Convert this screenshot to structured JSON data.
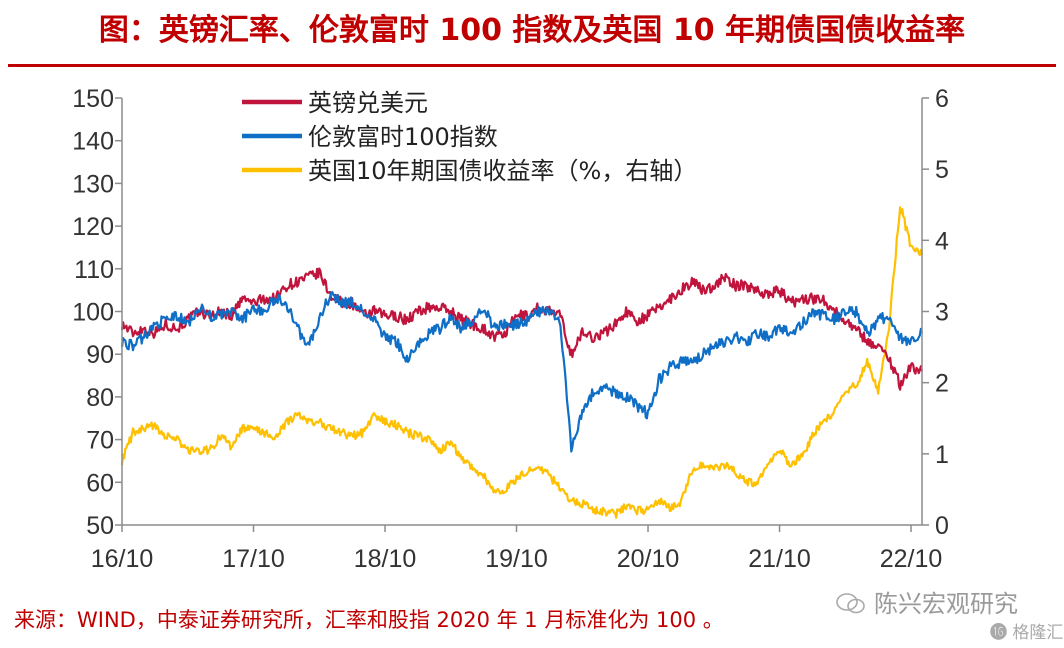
{
  "title": "图：英镑汇率、伦敦富时 100 指数及英国 10 年期债国债收益率",
  "source": "来源：WIND，中泰证券研究所，汇率和股指 2020 年 1 月标准化为 100 。",
  "watermark": {
    "text": "陈兴宏观研究",
    "logo_text": "格隆汇"
  },
  "chart_data": {
    "type": "line",
    "x_ticks": [
      "16/10",
      "17/10",
      "18/10",
      "19/10",
      "20/10",
      "21/10",
      "22/10"
    ],
    "xlim": [
      "2016-10",
      "2022-11"
    ],
    "ylim_left": [
      50,
      150
    ],
    "y_ticks_left": [
      "150",
      "140",
      "130",
      "120",
      "110",
      "100",
      "90",
      "80",
      "70",
      "60",
      "50"
    ],
    "ylim_right": [
      0,
      6
    ],
    "y_ticks_right": [
      "6",
      "5",
      "4",
      "3",
      "2",
      "1",
      "0"
    ],
    "grid": false,
    "legend_placement": "top-center",
    "series": [
      {
        "name": "英镑兑美元",
        "axis": "left",
        "color": "#c0143c",
        "points": [
          [
            "2016-10",
            97
          ],
          [
            "2016-11",
            95
          ],
          [
            "2016-12",
            96
          ],
          [
            "2017-01",
            95
          ],
          [
            "2017-02",
            97
          ],
          [
            "2017-03",
            96
          ],
          [
            "2017-04",
            98
          ],
          [
            "2017-05",
            100
          ],
          [
            "2017-06",
            99
          ],
          [
            "2017-07",
            100
          ],
          [
            "2017-08",
            99
          ],
          [
            "2017-09",
            103
          ],
          [
            "2017-10",
            102
          ],
          [
            "2017-11",
            103
          ],
          [
            "2017-12",
            103
          ],
          [
            "2018-01",
            106
          ],
          [
            "2018-02",
            107
          ],
          [
            "2018-03",
            108
          ],
          [
            "2018-04",
            109
          ],
          [
            "2018-05",
            104
          ],
          [
            "2018-06",
            102
          ],
          [
            "2018-07",
            102
          ],
          [
            "2018-08",
            99
          ],
          [
            "2018-09",
            100
          ],
          [
            "2018-10",
            99
          ],
          [
            "2018-11",
            99
          ],
          [
            "2018-12",
            98
          ],
          [
            "2019-01",
            100
          ],
          [
            "2019-02",
            101
          ],
          [
            "2019-03",
            101
          ],
          [
            "2019-04",
            100
          ],
          [
            "2019-05",
            98
          ],
          [
            "2019-06",
            97
          ],
          [
            "2019-07",
            96
          ],
          [
            "2019-08",
            94
          ],
          [
            "2019-09",
            95
          ],
          [
            "2019-10",
            99
          ],
          [
            "2019-11",
            99
          ],
          [
            "2019-12",
            101
          ],
          [
            "2020-01",
            100
          ],
          [
            "2020-02",
            99
          ],
          [
            "2020-03",
            90
          ],
          [
            "2020-04",
            95
          ],
          [
            "2020-05",
            94
          ],
          [
            "2020-06",
            95
          ],
          [
            "2020-07",
            97
          ],
          [
            "2020-08",
            100
          ],
          [
            "2020-09",
            98
          ],
          [
            "2020-10",
            99
          ],
          [
            "2020-11",
            101
          ],
          [
            "2020-12",
            103
          ],
          [
            "2021-01",
            105
          ],
          [
            "2021-02",
            107
          ],
          [
            "2021-03",
            105
          ],
          [
            "2021-04",
            106
          ],
          [
            "2021-05",
            108
          ],
          [
            "2021-06",
            106
          ],
          [
            "2021-07",
            106
          ],
          [
            "2021-08",
            105
          ],
          [
            "2021-09",
            104
          ],
          [
            "2021-10",
            105
          ],
          [
            "2021-11",
            102
          ],
          [
            "2021-12",
            103
          ],
          [
            "2022-01",
            103
          ],
          [
            "2022-02",
            103
          ],
          [
            "2022-03",
            100
          ],
          [
            "2022-04",
            98
          ],
          [
            "2022-05",
            96
          ],
          [
            "2022-06",
            93
          ],
          [
            "2022-07",
            92
          ],
          [
            "2022-08",
            89
          ],
          [
            "2022-09",
            83
          ],
          [
            "2022-10",
            87
          ],
          [
            "2022-11",
            86
          ]
        ]
      },
      {
        "name": "伦敦富时100指数",
        "axis": "left",
        "color": "#0f6fc6",
        "points": [
          [
            "2016-10",
            93
          ],
          [
            "2016-11",
            92
          ],
          [
            "2016-12",
            94
          ],
          [
            "2017-01",
            97
          ],
          [
            "2017-02",
            98
          ],
          [
            "2017-03",
            99
          ],
          [
            "2017-04",
            97
          ],
          [
            "2017-05",
            101
          ],
          [
            "2017-06",
            99
          ],
          [
            "2017-07",
            99
          ],
          [
            "2017-08",
            100
          ],
          [
            "2017-09",
            98
          ],
          [
            "2017-10",
            101
          ],
          [
            "2017-11",
            100
          ],
          [
            "2017-12",
            103
          ],
          [
            "2018-01",
            102
          ],
          [
            "2018-02",
            96
          ],
          [
            "2018-03",
            92
          ],
          [
            "2018-04",
            98
          ],
          [
            "2018-05",
            104
          ],
          [
            "2018-06",
            102
          ],
          [
            "2018-07",
            102
          ],
          [
            "2018-08",
            100
          ],
          [
            "2018-09",
            98
          ],
          [
            "2018-10",
            94
          ],
          [
            "2018-11",
            93
          ],
          [
            "2018-12",
            89
          ],
          [
            "2019-01",
            92
          ],
          [
            "2019-02",
            95
          ],
          [
            "2019-03",
            96
          ],
          [
            "2019-04",
            99
          ],
          [
            "2019-05",
            96
          ],
          [
            "2019-06",
            98
          ],
          [
            "2019-07",
            101
          ],
          [
            "2019-08",
            96
          ],
          [
            "2019-09",
            97
          ],
          [
            "2019-10",
            97
          ],
          [
            "2019-11",
            98
          ],
          [
            "2019-12",
            100
          ],
          [
            "2020-01",
            100
          ],
          [
            "2020-02",
            97
          ],
          [
            "2020-03",
            68
          ],
          [
            "2020-04",
            77
          ],
          [
            "2020-05",
            81
          ],
          [
            "2020-06",
            82
          ],
          [
            "2020-07",
            81
          ],
          [
            "2020-08",
            80
          ],
          [
            "2020-09",
            78
          ],
          [
            "2020-10",
            76
          ],
          [
            "2020-11",
            84
          ],
          [
            "2020-12",
            87
          ],
          [
            "2021-01",
            88
          ],
          [
            "2021-02",
            88
          ],
          [
            "2021-03",
            90
          ],
          [
            "2021-04",
            92
          ],
          [
            "2021-05",
            93
          ],
          [
            "2021-06",
            94
          ],
          [
            "2021-07",
            93
          ],
          [
            "2021-08",
            95
          ],
          [
            "2021-09",
            94
          ],
          [
            "2021-10",
            96
          ],
          [
            "2021-11",
            95
          ],
          [
            "2021-12",
            97
          ],
          [
            "2022-01",
            100
          ],
          [
            "2022-02",
            99
          ],
          [
            "2022-03",
            98
          ],
          [
            "2022-04",
            100
          ],
          [
            "2022-05",
            100
          ],
          [
            "2022-06",
            95
          ],
          [
            "2022-07",
            98
          ],
          [
            "2022-08",
            99
          ],
          [
            "2022-09",
            94
          ],
          [
            "2022-10",
            93
          ],
          [
            "2022-11",
            95
          ]
        ]
      },
      {
        "name": "英国10年期国债收益率（%，右轴）",
        "axis": "right",
        "color": "#ffc000",
        "points": [
          [
            "2016-10",
            0.9
          ],
          [
            "2016-11",
            1.3
          ],
          [
            "2016-12",
            1.35
          ],
          [
            "2017-01",
            1.4
          ],
          [
            "2017-02",
            1.25
          ],
          [
            "2017-03",
            1.2
          ],
          [
            "2017-04",
            1.05
          ],
          [
            "2017-05",
            1.05
          ],
          [
            "2017-06",
            1.05
          ],
          [
            "2017-07",
            1.25
          ],
          [
            "2017-08",
            1.1
          ],
          [
            "2017-09",
            1.35
          ],
          [
            "2017-10",
            1.35
          ],
          [
            "2017-11",
            1.3
          ],
          [
            "2017-12",
            1.2
          ],
          [
            "2018-01",
            1.45
          ],
          [
            "2018-02",
            1.55
          ],
          [
            "2018-03",
            1.45
          ],
          [
            "2018-04",
            1.45
          ],
          [
            "2018-05",
            1.35
          ],
          [
            "2018-06",
            1.3
          ],
          [
            "2018-07",
            1.25
          ],
          [
            "2018-08",
            1.3
          ],
          [
            "2018-09",
            1.55
          ],
          [
            "2018-10",
            1.45
          ],
          [
            "2018-11",
            1.4
          ],
          [
            "2018-12",
            1.3
          ],
          [
            "2019-01",
            1.25
          ],
          [
            "2019-02",
            1.2
          ],
          [
            "2019-03",
            1.05
          ],
          [
            "2019-04",
            1.15
          ],
          [
            "2019-05",
            0.95
          ],
          [
            "2019-06",
            0.8
          ],
          [
            "2019-07",
            0.7
          ],
          [
            "2019-08",
            0.45
          ],
          [
            "2019-09",
            0.5
          ],
          [
            "2019-10",
            0.65
          ],
          [
            "2019-11",
            0.75
          ],
          [
            "2019-12",
            0.8
          ],
          [
            "2020-01",
            0.7
          ],
          [
            "2020-02",
            0.5
          ],
          [
            "2020-03",
            0.35
          ],
          [
            "2020-04",
            0.3
          ],
          [
            "2020-05",
            0.2
          ],
          [
            "2020-06",
            0.2
          ],
          [
            "2020-07",
            0.15
          ],
          [
            "2020-08",
            0.25
          ],
          [
            "2020-09",
            0.2
          ],
          [
            "2020-10",
            0.2
          ],
          [
            "2020-11",
            0.35
          ],
          [
            "2020-12",
            0.25
          ],
          [
            "2021-01",
            0.3
          ],
          [
            "2021-02",
            0.75
          ],
          [
            "2021-03",
            0.85
          ],
          [
            "2021-04",
            0.8
          ],
          [
            "2021-05",
            0.85
          ],
          [
            "2021-06",
            0.75
          ],
          [
            "2021-07",
            0.6
          ],
          [
            "2021-08",
            0.6
          ],
          [
            "2021-09",
            0.9
          ],
          [
            "2021-10",
            1.05
          ],
          [
            "2021-11",
            0.85
          ],
          [
            "2021-12",
            0.95
          ],
          [
            "2022-01",
            1.25
          ],
          [
            "2022-02",
            1.45
          ],
          [
            "2022-03",
            1.6
          ],
          [
            "2022-04",
            1.9
          ],
          [
            "2022-05",
            1.95
          ],
          [
            "2022-06",
            2.3
          ],
          [
            "2022-07",
            1.9
          ],
          [
            "2022-08",
            2.8
          ],
          [
            "2022-09",
            4.5
          ],
          [
            "2022-10",
            3.9
          ],
          [
            "2022-11",
            3.8
          ]
        ]
      }
    ]
  }
}
